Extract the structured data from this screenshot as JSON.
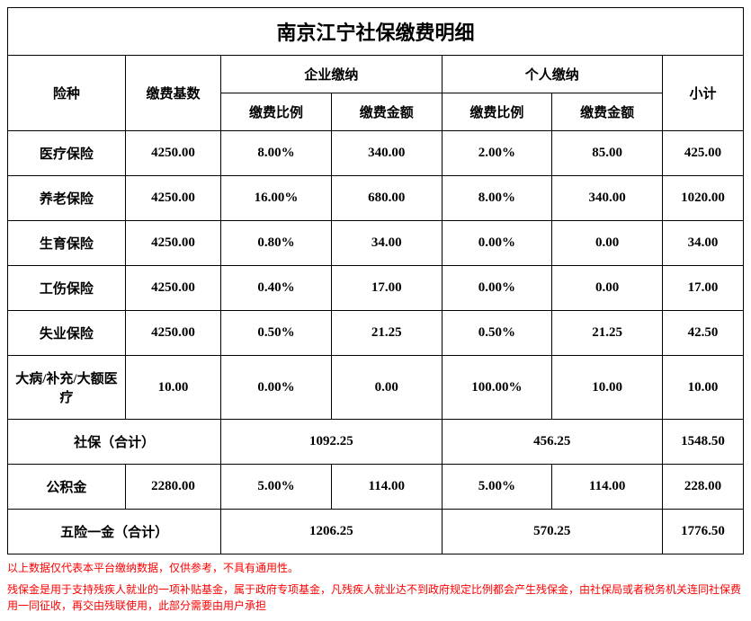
{
  "title": "南京江宁社保缴费明细",
  "headers": {
    "type": "险种",
    "base": "缴费基数",
    "company": "企业缴纳",
    "personal": "个人缴纳",
    "subtotal": "小计",
    "ratio": "缴费比例",
    "amount": "缴费金额"
  },
  "rows": [
    {
      "type": "医疗保险",
      "base": "4250.00",
      "c_ratio": "8.00%",
      "c_amount": "340.00",
      "p_ratio": "2.00%",
      "p_amount": "85.00",
      "subtotal": "425.00"
    },
    {
      "type": "养老保险",
      "base": "4250.00",
      "c_ratio": "16.00%",
      "c_amount": "680.00",
      "p_ratio": "8.00%",
      "p_amount": "340.00",
      "subtotal": "1020.00"
    },
    {
      "type": "生育保险",
      "base": "4250.00",
      "c_ratio": "0.80%",
      "c_amount": "34.00",
      "p_ratio": "0.00%",
      "p_amount": "0.00",
      "subtotal": "34.00"
    },
    {
      "type": "工伤保险",
      "base": "4250.00",
      "c_ratio": "0.40%",
      "c_amount": "17.00",
      "p_ratio": "0.00%",
      "p_amount": "0.00",
      "subtotal": "17.00"
    },
    {
      "type": "失业保险",
      "base": "4250.00",
      "c_ratio": "0.50%",
      "c_amount": "21.25",
      "p_ratio": "0.50%",
      "p_amount": "21.25",
      "subtotal": "42.50"
    },
    {
      "type": "大病/补充/大额医疗",
      "base": "10.00",
      "c_ratio": "0.00%",
      "c_amount": "0.00",
      "p_ratio": "100.00%",
      "p_amount": "10.00",
      "subtotal": "10.00"
    }
  ],
  "social_total": {
    "label": "社保（合计）",
    "company": "1092.25",
    "personal": "456.25",
    "subtotal": "1548.50"
  },
  "fund": {
    "label": "公积金",
    "base": "2280.00",
    "c_ratio": "5.00%",
    "c_amount": "114.00",
    "p_ratio": "5.00%",
    "p_amount": "114.00",
    "subtotal": "228.00"
  },
  "grand_total": {
    "label": "五险一金（合计）",
    "company": "1206.25",
    "personal": "570.25",
    "subtotal": "1776.50"
  },
  "footer": {
    "line1": "以上数据仅代表本平台缴纳数据，仅供参考，不具有通用性。",
    "line2": "残保金是用于支持残疾人就业的一项补贴基金，属于政府专项基金，凡残疾人就业达不到政府规定比例都会产生残保金，由社保局或者税务机关连同社保费用一同征收，再交由残联使用，此部分需要由用户承担"
  },
  "style": {
    "border_color": "#000000",
    "background_color": "#ffffff",
    "footer_color": "#ff0000",
    "title_fontsize": 22,
    "cell_fontsize": 15,
    "footer_fontsize": 12
  }
}
